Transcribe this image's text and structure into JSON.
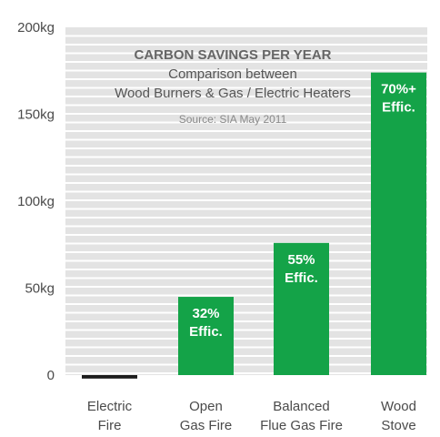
{
  "chart_data": {
    "type": "bar",
    "title": "CARBON SAVINGS PER YEAR",
    "subtitle_lines": [
      "Comparison between",
      "Wood Burners & Gas / Electric Heaters"
    ],
    "source": "Source: SIA May 2011",
    "categories": [
      [
        "Electric",
        "Fire"
      ],
      [
        "Open",
        "Gas Fire"
      ],
      [
        "Balanced",
        "Flue Gas Fire"
      ],
      [
        "Wood",
        "Stove"
      ]
    ],
    "values": [
      -2,
      45,
      76,
      174
    ],
    "bar_labels": [
      [],
      [
        "32%",
        "Effic."
      ],
      [
        "55%",
        "Effic."
      ],
      [
        "70%+",
        "Effic."
      ]
    ],
    "bar_colors": [
      "#1c1c1c",
      "#14a348",
      "#14a348",
      "#14a348"
    ],
    "yticks": [
      0,
      50,
      100,
      150,
      200
    ],
    "ytick_labels": [
      "0",
      "50kg",
      "100kg",
      "150kg",
      "200kg"
    ],
    "ylim": [
      0,
      200
    ],
    "grid": true,
    "background": "#e3e3e3",
    "grid_color": "#ffffff"
  }
}
